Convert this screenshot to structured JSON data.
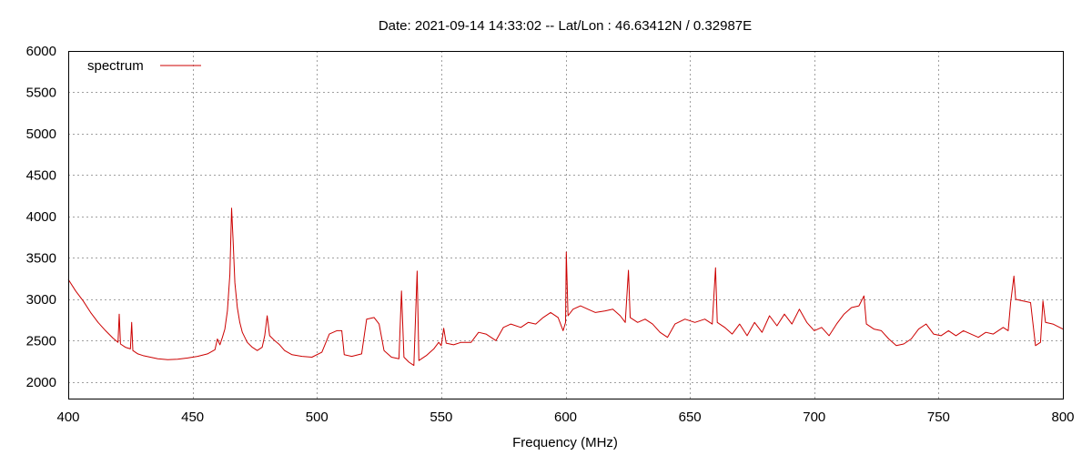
{
  "chart_data": {
    "type": "line",
    "title": "Date: 2021-09-14 14:33:02  --  Lat/Lon : 46.63412N / 0.32987E",
    "xlabel": "Frequency (MHz)",
    "ylabel": "",
    "xlim": [
      400,
      800
    ],
    "ylim": [
      1800,
      6000
    ],
    "xticks": [
      400,
      450,
      500,
      550,
      600,
      650,
      700,
      750,
      800
    ],
    "yticks": [
      2000,
      2500,
      3000,
      3500,
      4000,
      4500,
      5000,
      5500,
      6000
    ],
    "grid": true,
    "legend_position": "top-left",
    "series": [
      {
        "name": "spectrum",
        "color": "#cc0000",
        "points": [
          [
            400,
            3240
          ],
          [
            403,
            3100
          ],
          [
            406,
            2980
          ],
          [
            409,
            2840
          ],
          [
            412,
            2720
          ],
          [
            415,
            2620
          ],
          [
            418,
            2530
          ],
          [
            420,
            2480
          ],
          [
            420.5,
            2820
          ],
          [
            421,
            2460
          ],
          [
            423,
            2420
          ],
          [
            425,
            2400
          ],
          [
            425.5,
            2720
          ],
          [
            426,
            2380
          ],
          [
            428,
            2340
          ],
          [
            430,
            2320
          ],
          [
            433,
            2300
          ],
          [
            436,
            2280
          ],
          [
            440,
            2270
          ],
          [
            444,
            2275
          ],
          [
            448,
            2290
          ],
          [
            452,
            2310
          ],
          [
            456,
            2340
          ],
          [
            459,
            2390
          ],
          [
            460,
            2520
          ],
          [
            461,
            2450
          ],
          [
            462,
            2540
          ],
          [
            463,
            2640
          ],
          [
            464,
            2860
          ],
          [
            465,
            3300
          ],
          [
            465.7,
            4100
          ],
          [
            466.3,
            3700
          ],
          [
            467,
            3200
          ],
          [
            468,
            2900
          ],
          [
            469,
            2720
          ],
          [
            470,
            2600
          ],
          [
            472,
            2480
          ],
          [
            474,
            2420
          ],
          [
            476,
            2380
          ],
          [
            478,
            2420
          ],
          [
            479,
            2560
          ],
          [
            480,
            2800
          ],
          [
            481,
            2560
          ],
          [
            483,
            2500
          ],
          [
            485,
            2450
          ],
          [
            487,
            2380
          ],
          [
            490,
            2330
          ],
          [
            494,
            2310
          ],
          [
            498,
            2300
          ],
          [
            502,
            2360
          ],
          [
            505,
            2580
          ],
          [
            508,
            2620
          ],
          [
            510,
            2620
          ],
          [
            511,
            2330
          ],
          [
            514,
            2310
          ],
          [
            518,
            2340
          ],
          [
            520,
            2760
          ],
          [
            523,
            2780
          ],
          [
            525,
            2700
          ],
          [
            527,
            2380
          ],
          [
            530,
            2300
          ],
          [
            533,
            2280
          ],
          [
            534,
            3100
          ],
          [
            535,
            2300
          ],
          [
            537,
            2240
          ],
          [
            539,
            2200
          ],
          [
            540.3,
            3340
          ],
          [
            541,
            2260
          ],
          [
            544,
            2320
          ],
          [
            547,
            2400
          ],
          [
            549,
            2480
          ],
          [
            550,
            2440
          ],
          [
            551,
            2650
          ],
          [
            552,
            2470
          ],
          [
            555,
            2450
          ],
          [
            558,
            2480
          ],
          [
            562,
            2480
          ],
          [
            565,
            2600
          ],
          [
            568,
            2580
          ],
          [
            572,
            2500
          ],
          [
            575,
            2660
          ],
          [
            578,
            2700
          ],
          [
            582,
            2660
          ],
          [
            585,
            2720
          ],
          [
            588,
            2700
          ],
          [
            591,
            2780
          ],
          [
            594,
            2840
          ],
          [
            597,
            2780
          ],
          [
            599,
            2620
          ],
          [
            600,
            2720
          ],
          [
            600.3,
            3570
          ],
          [
            601,
            2800
          ],
          [
            603,
            2880
          ],
          [
            606,
            2920
          ],
          [
            609,
            2880
          ],
          [
            612,
            2840
          ],
          [
            616,
            2860
          ],
          [
            619,
            2880
          ],
          [
            622,
            2800
          ],
          [
            624,
            2720
          ],
          [
            625.3,
            3350
          ],
          [
            626,
            2780
          ],
          [
            629,
            2720
          ],
          [
            632,
            2760
          ],
          [
            635,
            2700
          ],
          [
            638,
            2600
          ],
          [
            641,
            2540
          ],
          [
            644,
            2700
          ],
          [
            648,
            2760
          ],
          [
            652,
            2720
          ],
          [
            656,
            2760
          ],
          [
            659,
            2700
          ],
          [
            660.3,
            3380
          ],
          [
            661,
            2720
          ],
          [
            664,
            2660
          ],
          [
            667,
            2580
          ],
          [
            670,
            2700
          ],
          [
            673,
            2560
          ],
          [
            676,
            2720
          ],
          [
            679,
            2600
          ],
          [
            682,
            2800
          ],
          [
            685,
            2680
          ],
          [
            688,
            2820
          ],
          [
            691,
            2700
          ],
          [
            694,
            2880
          ],
          [
            697,
            2720
          ],
          [
            700,
            2620
          ],
          [
            703,
            2660
          ],
          [
            706,
            2560
          ],
          [
            709,
            2700
          ],
          [
            712,
            2820
          ],
          [
            715,
            2900
          ],
          [
            718,
            2920
          ],
          [
            720,
            3040
          ],
          [
            721,
            2700
          ],
          [
            724,
            2640
          ],
          [
            727,
            2620
          ],
          [
            730,
            2520
          ],
          [
            733,
            2440
          ],
          [
            736,
            2460
          ],
          [
            739,
            2520
          ],
          [
            742,
            2640
          ],
          [
            745,
            2700
          ],
          [
            748,
            2580
          ],
          [
            751,
            2560
          ],
          [
            754,
            2620
          ],
          [
            757,
            2560
          ],
          [
            760,
            2620
          ],
          [
            763,
            2580
          ],
          [
            766,
            2540
          ],
          [
            769,
            2600
          ],
          [
            772,
            2580
          ],
          [
            776,
            2660
          ],
          [
            778,
            2620
          ],
          [
            779,
            2960
          ],
          [
            780.3,
            3280
          ],
          [
            781,
            3000
          ],
          [
            784,
            2980
          ],
          [
            787,
            2960
          ],
          [
            789,
            2440
          ],
          [
            791,
            2480
          ],
          [
            792,
            2980
          ],
          [
            793,
            2720
          ],
          [
            796,
            2700
          ],
          [
            800,
            2640
          ]
        ]
      }
    ]
  }
}
